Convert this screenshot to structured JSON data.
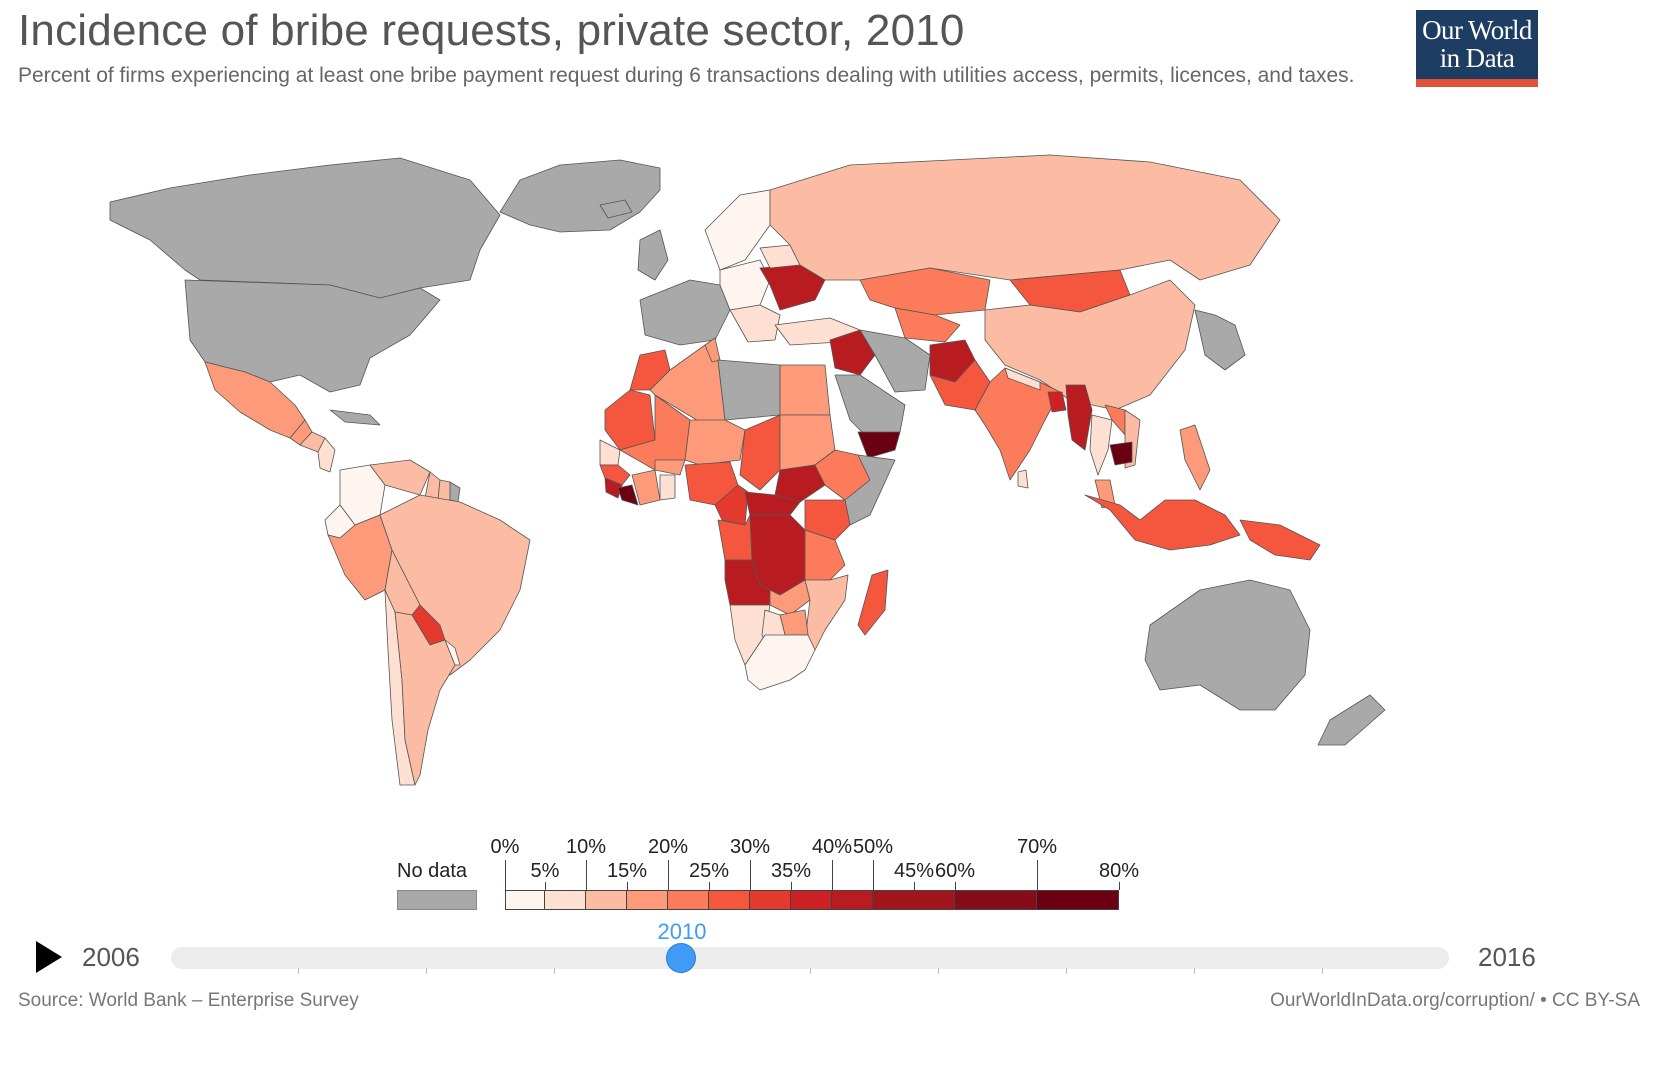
{
  "header": {
    "title": "Incidence of bribe requests, private sector, 2010",
    "subtitle": "Percent of firms experiencing at least one bribe payment request during 6 transactions dealing with utilities access, permits, licences, and taxes.",
    "logo_line1": "Our World",
    "logo_line2": "in Data"
  },
  "colors": {
    "no_data": "#a9a9a9",
    "ocean": "#ffffff",
    "border": "#555555",
    "bins": [
      "#fff5f0",
      "#fde0d2",
      "#fbbca3",
      "#fc9a7a",
      "#fb7b5b",
      "#f4563e",
      "#e43a2d",
      "#cc2226",
      "#b81c21",
      "#a2151c",
      "#860c17",
      "#6b0012"
    ],
    "accent_blue": "#3f9bf5",
    "logo_bg": "#1d3d63",
    "logo_bar": "#e0513a"
  },
  "legend": {
    "no_data_label": "No data",
    "top_labels": [
      "0%",
      "10%",
      "20%",
      "30%",
      "40%",
      "50%",
      "70%"
    ],
    "bottom_labels": [
      "5%",
      "15%",
      "25%",
      "35%",
      "45%",
      "60%",
      "80%"
    ]
  },
  "timeline": {
    "start_year": "2006",
    "end_year": "2016",
    "current_year": "2010"
  },
  "footer": {
    "source": "Source: World Bank – Enterprise Survey",
    "credit": "OurWorldInData.org/corruption/ • CC BY-SA"
  },
  "map_data": {
    "regions": [
      {
        "name": "Greenland",
        "bin": -1
      },
      {
        "name": "Canada",
        "bin": -1
      },
      {
        "name": "United States",
        "bin": -1
      },
      {
        "name": "Mexico",
        "bin": 3
      },
      {
        "name": "Guatemala",
        "bin": 3
      },
      {
        "name": "Honduras",
        "bin": 2
      },
      {
        "name": "Nicaragua",
        "bin": 1
      },
      {
        "name": "Cuba",
        "bin": -1
      },
      {
        "name": "Colombia",
        "bin": 0
      },
      {
        "name": "Venezuela",
        "bin": 2
      },
      {
        "name": "Guyana",
        "bin": 2
      },
      {
        "name": "Suriname",
        "bin": 2
      },
      {
        "name": "French Guiana",
        "bin": -1
      },
      {
        "name": "Ecuador",
        "bin": 0
      },
      {
        "name": "Peru",
        "bin": 3
      },
      {
        "name": "Brazil",
        "bin": 2
      },
      {
        "name": "Bolivia",
        "bin": 2
      },
      {
        "name": "Paraguay",
        "bin": 6
      },
      {
        "name": "Chile",
        "bin": 1
      },
      {
        "name": "Argentina",
        "bin": 2
      },
      {
        "name": "Uruguay",
        "bin": 0
      },
      {
        "name": "Iceland",
        "bin": -1
      },
      {
        "name": "UK & Ireland",
        "bin": -1
      },
      {
        "name": "Western Europe",
        "bin": -1
      },
      {
        "name": "Scandinavia",
        "bin": 0
      },
      {
        "name": "Central Europe",
        "bin": 0
      },
      {
        "name": "Balkans",
        "bin": 1
      },
      {
        "name": "Ukraine",
        "bin": 8
      },
      {
        "name": "Belarus",
        "bin": 1
      },
      {
        "name": "Turkey",
        "bin": 1
      },
      {
        "name": "Russia",
        "bin": 2
      },
      {
        "name": "Kazakhstan",
        "bin": 4
      },
      {
        "name": "Central Asia",
        "bin": 4
      },
      {
        "name": "Mongolia",
        "bin": 5
      },
      {
        "name": "China",
        "bin": 2
      },
      {
        "name": "Korea & Japan",
        "bin": -1
      },
      {
        "name": "Syria & Iraq",
        "bin": 8
      },
      {
        "name": "Saudi Arabia",
        "bin": -1
      },
      {
        "name": "Iran",
        "bin": -1
      },
      {
        "name": "Yemen",
        "bin": 11
      },
      {
        "name": "Afghanistan",
        "bin": 8
      },
      {
        "name": "Pakistan",
        "bin": 5
      },
      {
        "name": "India",
        "bin": 4
      },
      {
        "name": "Nepal",
        "bin": 1
      },
      {
        "name": "Bangladesh",
        "bin": 7
      },
      {
        "name": "Sri Lanka",
        "bin": 1
      },
      {
        "name": "Myanmar",
        "bin": 8
      },
      {
        "name": "Thailand",
        "bin": 1
      },
      {
        "name": "Laos",
        "bin": 4
      },
      {
        "name": "Vietnam",
        "bin": 2
      },
      {
        "name": "Cambodia",
        "bin": 11
      },
      {
        "name": "Malaysia",
        "bin": 3
      },
      {
        "name": "Philippines",
        "bin": 3
      },
      {
        "name": "Indonesia",
        "bin": 5
      },
      {
        "name": "Papua New Guinea",
        "bin": 5
      },
      {
        "name": "Australia",
        "bin": -1
      },
      {
        "name": "New Zealand",
        "bin": -1
      },
      {
        "name": "Morocco",
        "bin": 5
      },
      {
        "name": "Western Sahara & Mauritania",
        "bin": 5
      },
      {
        "name": "Algeria",
        "bin": 3
      },
      {
        "name": "Tunisia",
        "bin": 3
      },
      {
        "name": "Libya",
        "bin": -1
      },
      {
        "name": "Egypt",
        "bin": 3
      },
      {
        "name": "Mali",
        "bin": 4
      },
      {
        "name": "Niger",
        "bin": 3
      },
      {
        "name": "Chad",
        "bin": 5
      },
      {
        "name": "Sudan",
        "bin": 3
      },
      {
        "name": "South Sudan",
        "bin": 8
      },
      {
        "name": "Ethiopia",
        "bin": 4
      },
      {
        "name": "Somalia",
        "bin": -1
      },
      {
        "name": "Senegal",
        "bin": 1
      },
      {
        "name": "Guinea",
        "bin": 5
      },
      {
        "name": "Sierra Leone",
        "bin": 8
      },
      {
        "name": "Liberia",
        "bin": 11
      },
      {
        "name": "Cote d'Ivoire",
        "bin": 3
      },
      {
        "name": "Burkina Faso",
        "bin": 3
      },
      {
        "name": "Ghana",
        "bin": 1
      },
      {
        "name": "Nigeria",
        "bin": 5
      },
      {
        "name": "Cameroon",
        "bin": 6
      },
      {
        "name": "Central African Republic",
        "bin": 8
      },
      {
        "name": "Gabon & Congo",
        "bin": 5
      },
      {
        "name": "DR Congo",
        "bin": 8
      },
      {
        "name": "Uganda & Kenya",
        "bin": 5
      },
      {
        "name": "Tanzania",
        "bin": 4
      },
      {
        "name": "Angola",
        "bin": 8
      },
      {
        "name": "Zambia",
        "bin": 3
      },
      {
        "name": "Malawi & Mozambique",
        "bin": 2
      },
      {
        "name": "Zimbabwe",
        "bin": 3
      },
      {
        "name": "Namibia",
        "bin": 1
      },
      {
        "name": "Botswana",
        "bin": 1
      },
      {
        "name": "South Africa",
        "bin": 0
      },
      {
        "name": "Madagascar",
        "bin": 5
      }
    ]
  }
}
